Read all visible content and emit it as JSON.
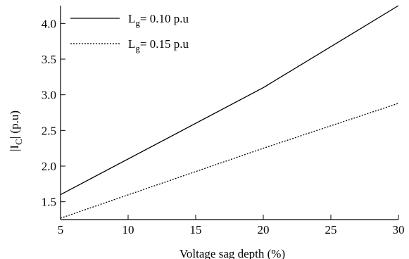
{
  "chart_data": {
    "type": "line",
    "x": [
      5,
      20,
      30
    ],
    "xlim": [
      5,
      30
    ],
    "ylim": [
      1.25,
      4.25
    ],
    "xticks": [
      5,
      10,
      15,
      20,
      25,
      30
    ],
    "yticks": [
      1.5,
      2.0,
      2.5,
      3.0,
      3.5,
      4.0
    ],
    "xtick_labels": [
      "5",
      "10",
      "15",
      "20",
      "25",
      "30"
    ],
    "ytick_labels": [
      "1.5",
      "2.0",
      "2.5",
      "3.0",
      "3.5",
      "4.0"
    ],
    "xlabel": "Voltage sag depth (%)",
    "ylabel": "|I",
    "ylabel_sub": "C",
    "ylabel_tail": "| (p.u)",
    "legend_position": "top-left",
    "grid": false,
    "series": [
      {
        "legend_main": "L",
        "legend_sub": "g",
        "legend_tail": "= 0.10 p.u",
        "style": "solid",
        "color": "#000000",
        "x": [
          5,
          20,
          30
        ],
        "values": [
          1.6,
          3.1,
          4.25
        ]
      },
      {
        "legend_main": "L",
        "legend_sub": "g",
        "legend_tail": "= 0.15 p.u",
        "style": "dotted",
        "color": "#000000",
        "x": [
          5,
          20,
          30
        ],
        "values": [
          1.27,
          2.25,
          2.88
        ]
      }
    ]
  }
}
